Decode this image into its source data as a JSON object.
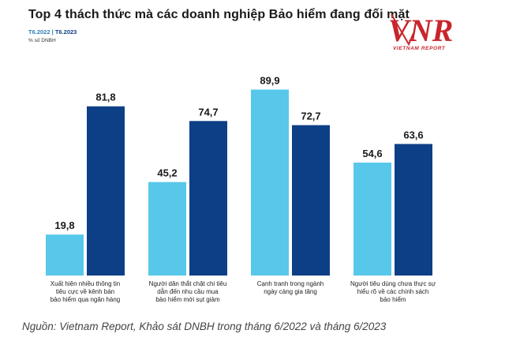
{
  "title": "Top 4 thách thức mà các doanh nghiệp Bảo hiểm đang đối mặt",
  "legend": {
    "series1": "T6.2022",
    "separator": "|",
    "series2": "T6.2023"
  },
  "unit": "% số DNBH",
  "logo": {
    "brand": "VNR",
    "tagline": "VIETNAM REPORT",
    "color": "#c8252c"
  },
  "source": "Nguồn: Vietnam Report, Khảo sát DNBH trong tháng 6/2022 và tháng 6/2023",
  "chart_data": {
    "type": "bar",
    "categories": [
      [
        "Xuất hiện nhiều thông tin",
        "tiêu cực về kênh bán",
        "bảo hiểm qua ngân hàng"
      ],
      [
        "Người dân thắt chặt chi tiêu",
        "dẫn đến nhu cầu mua",
        "bảo hiểm mới sụt giảm"
      ],
      [
        "Cạnh tranh trong ngành",
        "ngày càng gia tăng"
      ],
      [
        "Người tiêu dùng chưa thực sự",
        "hiểu rõ về các chính sách",
        "bảo hiểm"
      ]
    ],
    "series": [
      {
        "name": "T6.2022",
        "values": [
          "19,8",
          "45,2",
          "89,9",
          "54,6"
        ],
        "color": "#58c8ea"
      },
      {
        "name": "T6.2023",
        "values": [
          "81,8",
          "74,7",
          "72,7",
          "63,6"
        ],
        "color": "#0d3f86"
      }
    ],
    "ylim": [
      0,
      100
    ],
    "grid": false
  }
}
